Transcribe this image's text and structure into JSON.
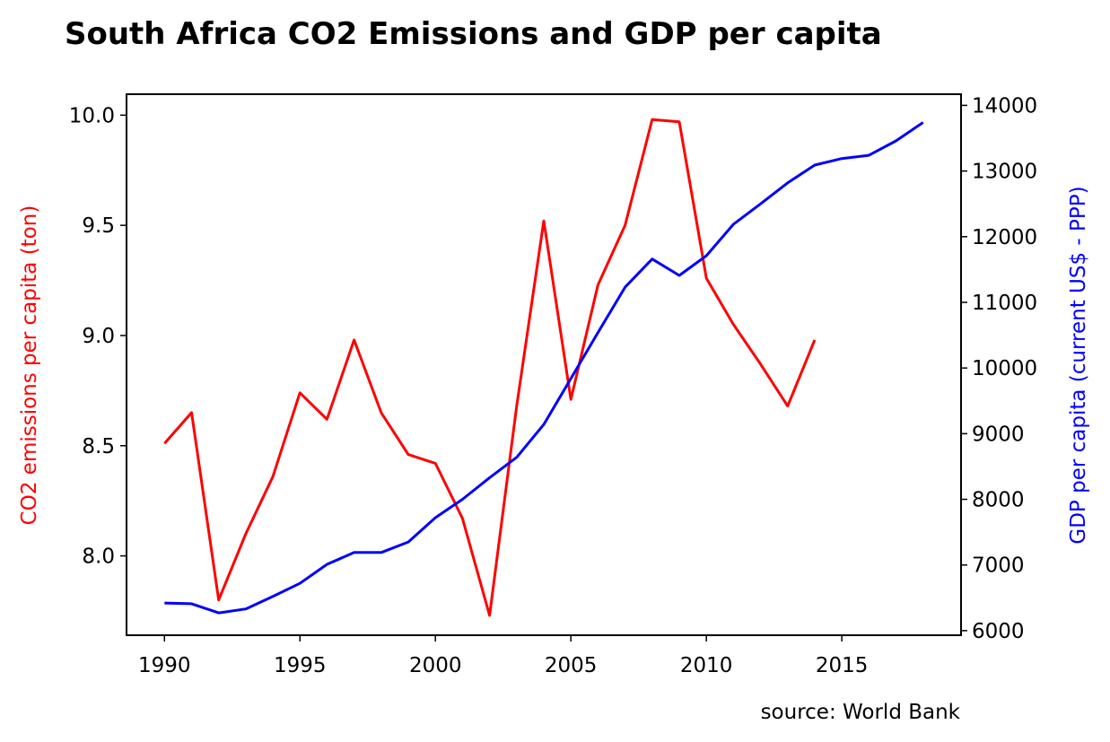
{
  "chart_data": {
    "type": "line",
    "title": "South Africa CO2 Emissions and GDP per capita",
    "source": "source: World Bank",
    "x_ticks": [
      "1990",
      "1995",
      "2000",
      "2005",
      "2010",
      "2015"
    ],
    "x_tick_values": [
      1990,
      1995,
      2000,
      2005,
      2010,
      2015
    ],
    "xlim": [
      1988.6,
      2019.4
    ],
    "left_axis": {
      "label": "CO2 emissions per capita (ton)",
      "color": "#ff0000",
      "ylim": [
        7.64,
        10.095
      ],
      "ticks": [
        "8.0",
        "8.5",
        "9.0",
        "9.5",
        "10.0"
      ],
      "tick_values": [
        8.0,
        8.5,
        9.0,
        9.5,
        10.0
      ]
    },
    "right_axis": {
      "label": "GDP per capita (current US$ - PPP)",
      "color": "#0000ff",
      "ylim": [
        5930,
        14170
      ],
      "ticks": [
        "6000",
        "7000",
        "8000",
        "9000",
        "10000",
        "11000",
        "12000",
        "13000",
        "14000"
      ],
      "tick_values": [
        6000,
        7000,
        8000,
        9000,
        10000,
        11000,
        12000,
        13000,
        14000
      ]
    },
    "series": [
      {
        "axis": "left",
        "color": "#ff0000",
        "x": [
          1990,
          1991,
          1992,
          1993,
          1994,
          1995,
          1996,
          1997,
          1998,
          1999,
          2000,
          2001,
          2002,
          2003,
          2004,
          2005,
          2006,
          2007,
          2008,
          2009,
          2010,
          2011,
          2012,
          2013,
          2014
        ],
        "values": [
          8.51,
          8.65,
          7.8,
          8.1,
          8.36,
          8.74,
          8.62,
          8.98,
          8.65,
          8.46,
          8.42,
          8.17,
          7.73,
          8.68,
          9.52,
          8.71,
          9.23,
          9.5,
          9.98,
          9.97,
          9.26,
          9.05,
          8.87,
          8.68,
          8.98
        ]
      },
      {
        "axis": "right",
        "color": "#0000ff",
        "x": [
          1990,
          1991,
          1992,
          1993,
          1994,
          1995,
          1996,
          1997,
          1998,
          1999,
          2000,
          2001,
          2002,
          2003,
          2004,
          2005,
          2006,
          2007,
          2008,
          2009,
          2010,
          2011,
          2012,
          2013,
          2014,
          2015,
          2016,
          2017,
          2018
        ],
        "values": [
          6420,
          6410,
          6270,
          6330,
          6520,
          6720,
          7010,
          7190,
          7190,
          7350,
          7720,
          8000,
          8330,
          8640,
          9140,
          9840,
          10540,
          11230,
          11660,
          11410,
          11710,
          12190,
          12500,
          12820,
          13090,
          13190,
          13240,
          13460,
          13740
        ]
      }
    ]
  }
}
